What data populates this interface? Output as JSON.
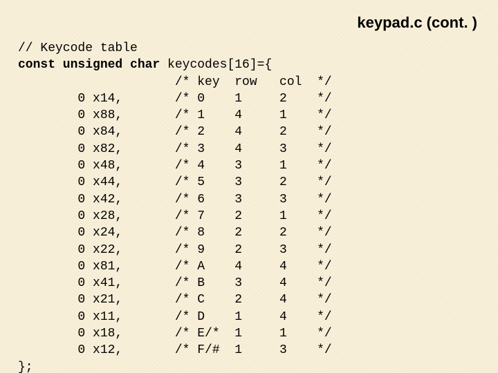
{
  "title": "keypad.c  (cont. )",
  "comment_line": "// Keycode table",
  "decl_prefix": "const unsigned char",
  "decl_rest": " keycodes[16]={",
  "header": {
    "key": "key",
    "row": "row",
    "col": "col"
  },
  "rows": [
    {
      "hex": "0 x14,",
      "key": "0",
      "row": "1",
      "col": "2"
    },
    {
      "hex": "0 x88,",
      "key": "1",
      "row": "4",
      "col": "1"
    },
    {
      "hex": "0 x84,",
      "key": "2",
      "row": "4",
      "col": "2"
    },
    {
      "hex": "0 x82,",
      "key": "3",
      "row": "4",
      "col": "3"
    },
    {
      "hex": "0 x48,",
      "key": "4",
      "row": "3",
      "col": "1"
    },
    {
      "hex": "0 x44,",
      "key": "5",
      "row": "3",
      "col": "2"
    },
    {
      "hex": "0 x42,",
      "key": "6",
      "row": "3",
      "col": "3"
    },
    {
      "hex": "0 x28,",
      "key": "7",
      "row": "2",
      "col": "1"
    },
    {
      "hex": "0 x24,",
      "key": "8",
      "row": "2",
      "col": "2"
    },
    {
      "hex": "0 x22,",
      "key": "9",
      "row": "2",
      "col": "3"
    },
    {
      "hex": "0 x81,",
      "key": "A",
      "row": "4",
      "col": "4"
    },
    {
      "hex": "0 x41,",
      "key": "B",
      "row": "3",
      "col": "4"
    },
    {
      "hex": "0 x21,",
      "key": "C",
      "row": "2",
      "col": "4"
    },
    {
      "hex": "0 x11,",
      "key": "D",
      "row": "1",
      "col": "4"
    },
    {
      "hex": "0 x18,",
      "key": "E/*",
      "row": "1",
      "col": "1"
    },
    {
      "hex": "0 x12,",
      "key": "F/#",
      "row": "1",
      "col": "3"
    }
  ],
  "footer": "};",
  "layout": {
    "indent_hex": "        ",
    "indent_hdr": "                     ",
    "cstart": "/* ",
    "cend": "*/",
    "col_hex": 7,
    "col_key": 5,
    "col_row": 6,
    "col_col": 5
  },
  "colors": {
    "background": "#f9f0da",
    "text": "#000000"
  },
  "typography": {
    "title_fontsize": 22,
    "code_fontsize": 18,
    "code_font": "Courier New"
  }
}
